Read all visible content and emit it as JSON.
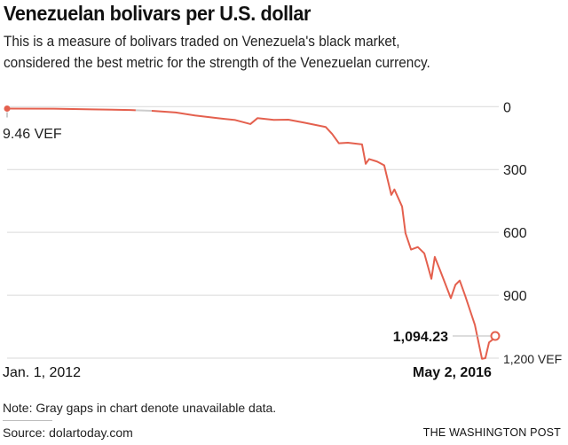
{
  "title": "Venezuelan bolivars per U.S. dollar",
  "subtitle": [
    "This is a measure of bolivars traded on Venezuela's black market,",
    "considered the best metric for the strength of the Venezuelan currency."
  ],
  "note": "Note: Gray gaps in chart denote unavailable data.",
  "source": "Source: dolartoday.com",
  "credit": "THE WASHINGTON POST",
  "chart_data": {
    "type": "line",
    "title": "Venezuelan bolivars per U.S. dollar",
    "y_axis_inverted": true,
    "ylim": [
      0,
      1200
    ],
    "yticks": [
      0,
      300,
      600,
      900,
      1200
    ],
    "ytick_labels": [
      "0",
      "300",
      "600",
      "900",
      "1,200 VEF"
    ],
    "y_axis_position": "right",
    "x_labels": {
      "start": "Jan. 1, 2012",
      "end": "May 2, 2016"
    },
    "grid": true,
    "start_label": "9.46 VEF",
    "end_label": "1,094.23",
    "colors": {
      "line": "#e4604e",
      "gap": "#cccccc",
      "grid": "#d9d9d9"
    },
    "gaps": [
      [
        "2013-02-21",
        "2013-04-14"
      ]
    ],
    "points": [
      [
        "2012-01-01",
        9.46
      ],
      [
        "2012-06-01",
        10
      ],
      [
        "2012-10-01",
        13
      ],
      [
        "2013-02-04",
        16
      ],
      [
        "2013-02-21",
        17
      ],
      [
        "2013-04-14",
        20
      ],
      [
        "2013-07-01",
        28
      ],
      [
        "2013-09-01",
        42
      ],
      [
        "2013-11-13",
        55
      ],
      [
        "2014-01-10",
        64
      ],
      [
        "2014-02-28",
        83
      ],
      [
        "2014-03-23",
        55
      ],
      [
        "2014-05-15",
        63
      ],
      [
        "2014-07-01",
        62
      ],
      [
        "2014-08-20",
        76
      ],
      [
        "2014-10-30",
        97
      ],
      [
        "2014-11-20",
        130
      ],
      [
        "2014-12-12",
        175
      ],
      [
        "2015-01-10",
        172
      ],
      [
        "2015-02-25",
        180
      ],
      [
        "2015-03-09",
        273
      ],
      [
        "2015-03-20",
        250
      ],
      [
        "2015-04-15",
        262
      ],
      [
        "2015-05-08",
        280
      ],
      [
        "2015-05-31",
        421
      ],
      [
        "2015-06-10",
        395
      ],
      [
        "2015-07-05",
        477
      ],
      [
        "2015-07-16",
        604
      ],
      [
        "2015-08-03",
        682
      ],
      [
        "2015-08-25",
        670
      ],
      [
        "2015-09-15",
        700
      ],
      [
        "2015-10-08",
        822
      ],
      [
        "2015-10-19",
        717
      ],
      [
        "2015-11-05",
        780
      ],
      [
        "2015-12-10",
        914
      ],
      [
        "2015-12-25",
        850
      ],
      [
        "2016-01-08",
        830
      ],
      [
        "2016-01-25",
        900
      ],
      [
        "2016-02-26",
        1041
      ],
      [
        "2016-03-20",
        1203
      ],
      [
        "2016-03-31",
        1200
      ],
      [
        "2016-04-12",
        1125
      ],
      [
        "2016-04-25",
        1110
      ],
      [
        "2016-05-02",
        1094.23
      ]
    ]
  }
}
